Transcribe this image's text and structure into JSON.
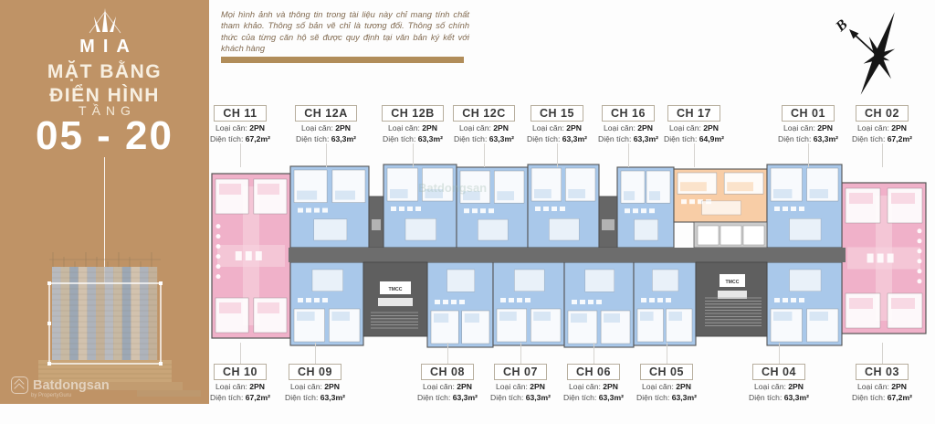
{
  "sidebar": {
    "logo": "MIA",
    "title_line1": "MẶT BẰNG",
    "title_line2": "ĐIỂN HÌNH",
    "floor_label": "TẦNG",
    "floor_range": "05 - 20"
  },
  "disclaimer": "Mọi hình ảnh và thông tin trong tài liệu này chỉ mang tính chất tham khảo. Thông số bản vẽ chỉ là tương đối. Thông số chính thức của từng căn hộ sẽ được quy định tại văn bản ký kết với khách hàng",
  "compass": {
    "north_label": "B"
  },
  "watermark": {
    "brand": "Batdongsan",
    "sub": "by PropertyGuru"
  },
  "field_labels": {
    "type": "Loại căn:",
    "area": "Diện tích:"
  },
  "plan": {
    "core_label": "TMCC",
    "colors": {
      "blue": "#a9c8ea",
      "pink": "#f0b1c9",
      "orange": "#f8cda6",
      "core": "#5f5f5f",
      "corridor": "#6d6d6d"
    }
  },
  "units_top": [
    {
      "id": "CH 11",
      "type": "2PN",
      "area": "67,2m²",
      "color": "pink"
    },
    {
      "id": "CH 12A",
      "type": "2PN",
      "area": "63,3m²",
      "color": "blue"
    },
    {
      "id": "CH 12B",
      "type": "2PN",
      "area": "63,3m²",
      "color": "blue"
    },
    {
      "id": "CH 12C",
      "type": "2PN",
      "area": "63,3m²",
      "color": "blue"
    },
    {
      "id": "CH 15",
      "type": "2PN",
      "area": "63,3m²",
      "color": "blue"
    },
    {
      "id": "CH 16",
      "type": "2PN",
      "area": "63,3m²",
      "color": "blue"
    },
    {
      "id": "CH 17",
      "type": "2PN",
      "area": "64,9m²",
      "color": "orange"
    },
    {
      "id": "CH 01",
      "type": "2PN",
      "area": "63,3m²",
      "color": "blue"
    },
    {
      "id": "CH 02",
      "type": "2PN",
      "area": "67,2m²",
      "color": "pink"
    }
  ],
  "units_bottom": [
    {
      "id": "CH 10",
      "type": "2PN",
      "area": "67,2m²",
      "color": "pink"
    },
    {
      "id": "CH 09",
      "type": "2PN",
      "area": "63,3m²",
      "color": "blue"
    },
    {
      "id": "CH 08",
      "type": "2PN",
      "area": "63,3m²",
      "color": "blue"
    },
    {
      "id": "CH 07",
      "type": "2PN",
      "area": "63,3m²",
      "color": "blue"
    },
    {
      "id": "CH 06",
      "type": "2PN",
      "area": "63,3m²",
      "color": "blue"
    },
    {
      "id": "CH 05",
      "type": "2PN",
      "area": "63,3m²",
      "color": "blue"
    },
    {
      "id": "CH 04",
      "type": "2PN",
      "area": "63,3m²",
      "color": "blue"
    },
    {
      "id": "CH 03",
      "type": "2PN",
      "area": "67,2m²",
      "color": "pink"
    }
  ]
}
